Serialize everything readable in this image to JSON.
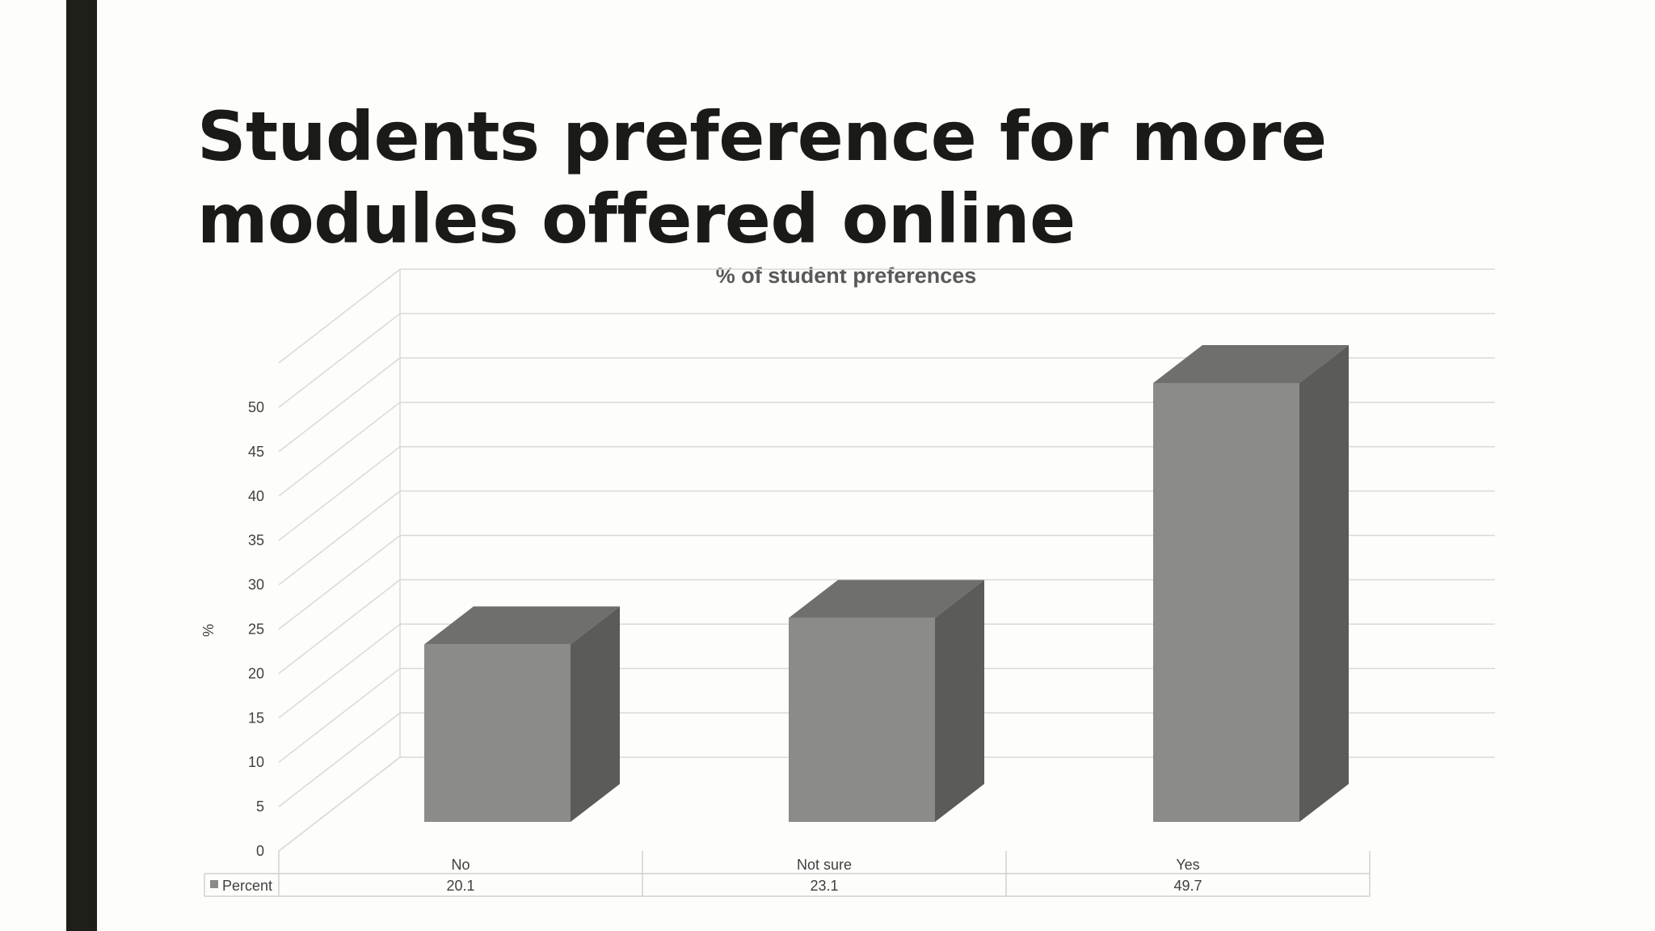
{
  "slide": {
    "title": "Students preference for more modules offered online"
  },
  "chart_data": {
    "type": "bar",
    "title": "% of student preferences",
    "ylabel": "%",
    "xlabel": "",
    "categories": [
      "No",
      "Not sure",
      "Yes"
    ],
    "series": [
      {
        "name": "Percent",
        "values": [
          20.1,
          23.1,
          49.7
        ]
      }
    ],
    "ylim": [
      0,
      50
    ],
    "yticks": [
      0,
      5,
      10,
      15,
      20,
      25,
      30,
      35,
      40,
      45,
      50
    ],
    "grid": true,
    "data_table": true,
    "style": "3d-column",
    "colors": {
      "front": "#8b8c87",
      "side": "#5b5c58",
      "top": "#6f706b",
      "grid": "#d9d9d9"
    }
  }
}
